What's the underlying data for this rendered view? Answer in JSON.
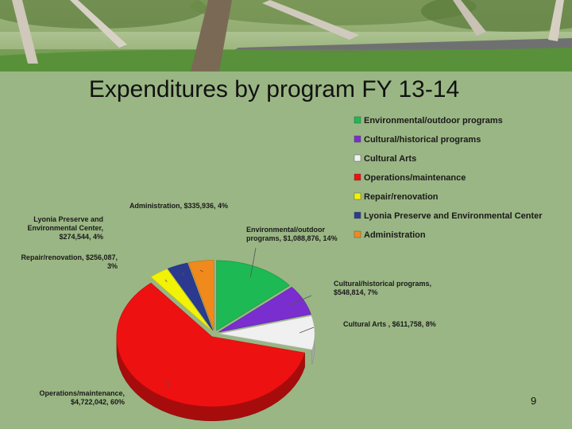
{
  "slide": {
    "title": "Expenditures by program FY 13-14",
    "page_number": "9"
  },
  "colors": {
    "background": "#9ab684"
  },
  "chart_data": {
    "type": "pie",
    "title": "Expenditures by program FY 13-14",
    "legend_position": "top-right",
    "categories": [
      "Environmental/outdoor programs",
      "Cultural/historical programs",
      "Cultural Arts",
      "Operations/maintenance",
      "Repair/renovation",
      "Lyonia Preserve and Environmental Center",
      "Administration"
    ],
    "values": [
      1088876,
      548814,
      611758,
      4722042,
      256087,
      274544,
      335936
    ],
    "percent": [
      14,
      7,
      8,
      60,
      3,
      4,
      4
    ],
    "colors": [
      "#1db954",
      "#7a2ecf",
      "#f0f0f0",
      "#ee1111",
      "#f2f207",
      "#2b3a8f",
      "#f08a1c"
    ],
    "data_labels": [
      [
        "Environmental/outdoor",
        "programs, $1,088,876, 14%"
      ],
      [
        "Cultural/historical programs,",
        "$548,814, 7%"
      ],
      [
        "Cultural Arts , $611,758, 8%"
      ],
      [
        "Operations/maintenance,",
        "$4,722,042, 60%"
      ],
      [
        "Repair/renovation, $256,087,",
        "3%"
      ],
      [
        "Lyonia Preserve and",
        "Environmental Center,",
        "$274,544, 4%"
      ],
      [
        "Administration, $335,936, 4%"
      ]
    ]
  }
}
